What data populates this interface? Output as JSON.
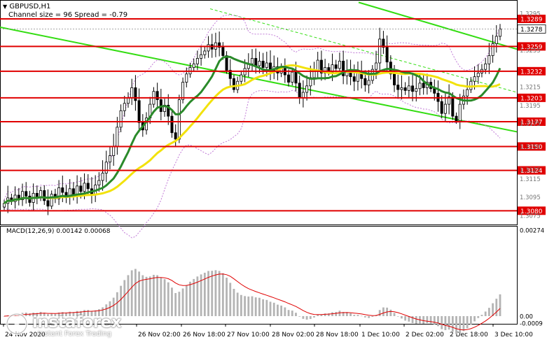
{
  "header": {
    "symbol": "GBPUSD,H1",
    "channel_text": "Channel size = 96 Spread = -0.79"
  },
  "macd_label": "MACD(12,26,9) 0.00142 0.00068",
  "logo": {
    "name": "instaforex",
    "tagline": "Instant Forex Trading"
  },
  "colors": {
    "level_line": "#e00000",
    "level_tag": "#e00000",
    "price_tag": "#ffffff",
    "channel": "#33dd11",
    "ma_fast": "#2a8a2a",
    "ma_slow": "#f2e20c",
    "bands": "#c079d6",
    "candles": "#000000",
    "macd_hist": "#b4b4b4",
    "macd_signal": "#e00000"
  },
  "chart_data": {
    "type": "candlestick",
    "symbol": "GBPUSD",
    "timeframe": "H1",
    "ylim": [
      1.3065,
      1.3305
    ],
    "x_labels": [
      "24 Nov 2020",
      "26 Nov 02:00",
      "26 Nov 18:00",
      "27 Nov 10:00",
      "28 Nov 02:00",
      "28 Nov 18:00",
      "1 Dec 10:00",
      "2 Dec 02:00",
      "2 Dec 18:00",
      "3 Dec 10:00"
    ],
    "y_ticks": [
      "1.3295",
      "1.3255",
      "1.3215",
      "1.3195",
      "1.3175",
      "1.3150",
      "1.3125",
      "1.3115",
      "1.3095",
      "1.3075"
    ],
    "levels": [
      "1.3289",
      "1.3259",
      "1.3232",
      "1.3203",
      "1.3177",
      "1.3150",
      "1.3124",
      "1.3080"
    ],
    "current_price": "1.3278",
    "close": [
      1.3088,
      1.3094,
      1.309,
      1.3097,
      1.3092,
      1.3101,
      1.3096,
      1.3089,
      1.3099,
      1.3094,
      1.3102,
      1.3091,
      1.3085,
      1.3098,
      1.3093,
      1.3105,
      1.31,
      1.3095,
      1.3104,
      1.3097,
      1.3107,
      1.3101,
      1.311,
      1.3104,
      1.3098,
      1.3108,
      1.3113,
      1.3121,
      1.3133,
      1.314,
      1.315,
      1.3171,
      1.3189,
      1.3197,
      1.3203,
      1.3214,
      1.32,
      1.3176,
      1.3168,
      1.3181,
      1.3196,
      1.321,
      1.3201,
      1.3188,
      1.3195,
      1.3183,
      1.3165,
      1.3158,
      1.3201,
      1.322,
      1.3229,
      1.3236,
      1.324,
      1.3246,
      1.325,
      1.3254,
      1.3261,
      1.3256,
      1.3263,
      1.3258,
      1.3249,
      1.3233,
      1.3224,
      1.3212,
      1.3221,
      1.3228,
      1.3235,
      1.324,
      1.3246,
      1.3238,
      1.3243,
      1.3236,
      1.3241,
      1.3233,
      1.3237,
      1.323,
      1.3235,
      1.3228,
      1.322,
      1.3231,
      1.3219,
      1.3203,
      1.3209,
      1.3216,
      1.3225,
      1.3232,
      1.3244,
      1.323,
      1.3236,
      1.3231,
      1.3239,
      1.3235,
      1.3243,
      1.3227,
      1.3233,
      1.3226,
      1.3221,
      1.323,
      1.3224,
      1.3217,
      1.3222,
      1.3234,
      1.3241,
      1.3267,
      1.3258,
      1.3242,
      1.3229,
      1.3217,
      1.3212,
      1.3214,
      1.3211,
      1.3216,
      1.321,
      1.3213,
      1.3219,
      1.3214,
      1.322,
      1.3213,
      1.3208,
      1.3199,
      1.3186,
      1.3196,
      1.3204,
      1.3183,
      1.3178,
      1.3196,
      1.3205,
      1.3212,
      1.3221,
      1.3226,
      1.323,
      1.3234,
      1.324,
      1.3249,
      1.3262,
      1.327,
      1.3278
    ],
    "indicators": [
      "Moving Average (fast)",
      "Moving Average (slow)",
      "Bollinger Bands",
      "Regression channel"
    ],
    "macd": {
      "params": "12,26,9",
      "main": 0.00142,
      "signal": 0.00068,
      "y_ticks": [
        "0.00274",
        "0.00",
        "-0.0009"
      ]
    }
  }
}
